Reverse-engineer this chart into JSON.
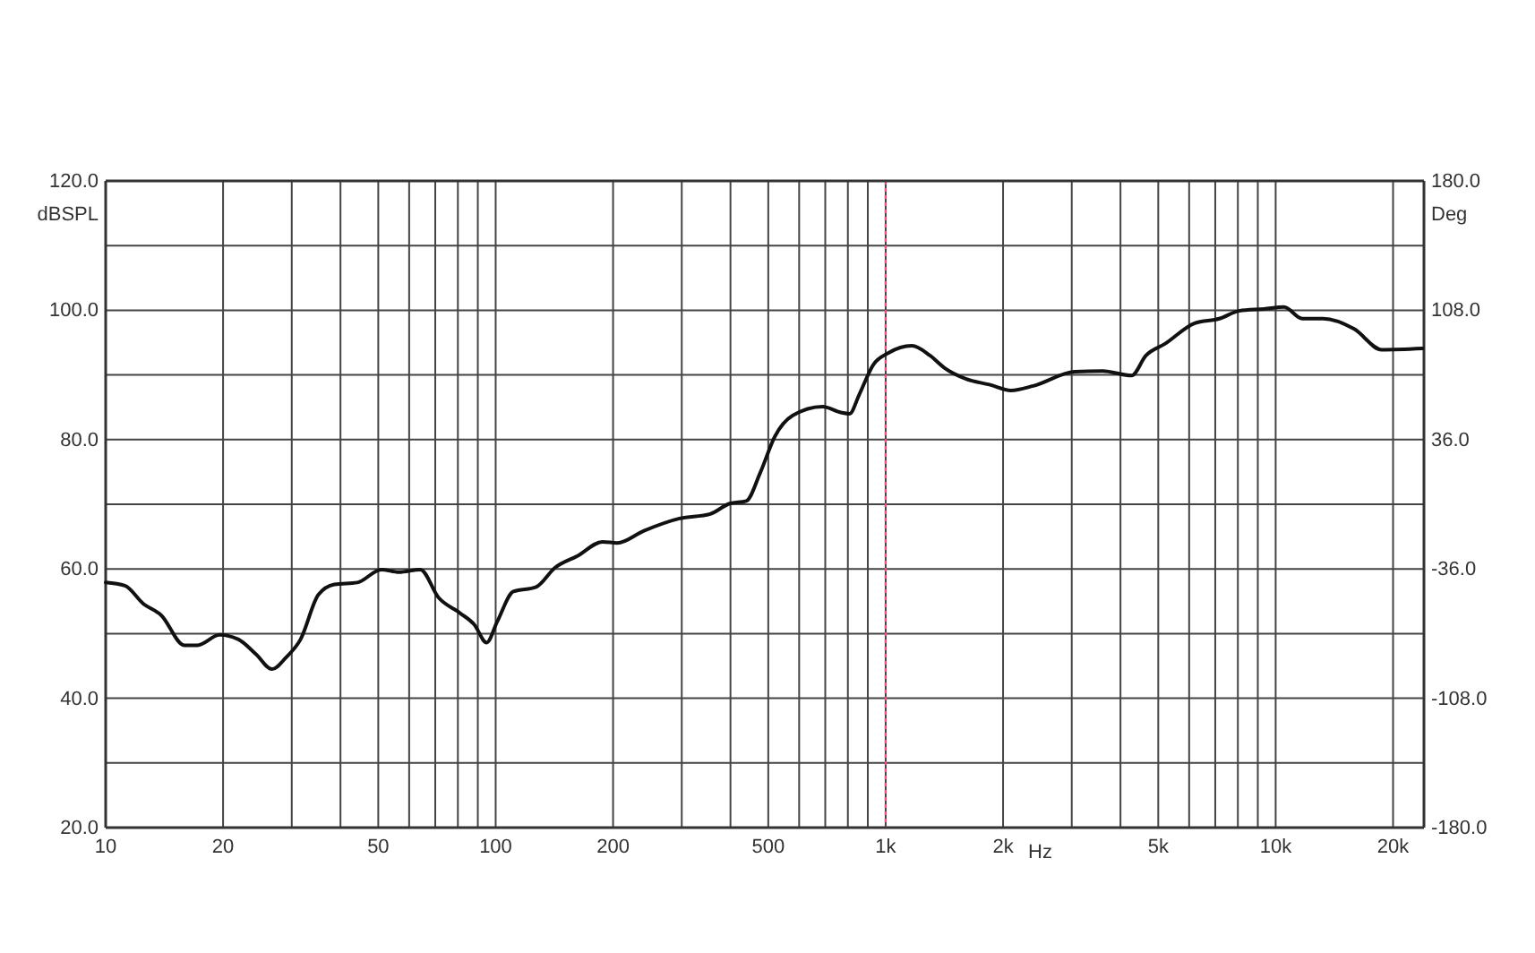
{
  "chart_data": {
    "type": "line",
    "xlabel": "Hz",
    "ylabel": "dBSPL",
    "y2label": "Deg",
    "log": "x",
    "grid": true,
    "line_style": "solid",
    "xlim": [
      10,
      24000
    ],
    "ylim": [
      20,
      120
    ],
    "y2lim": [
      -180,
      180
    ],
    "xticks": [
      10,
      20,
      {
        "value": 30,
        "label": null
      },
      {
        "value": 40,
        "label": null
      },
      50,
      {
        "value": 60,
        "label": null
      },
      {
        "value": 70,
        "label": null
      },
      {
        "value": 80,
        "label": null
      },
      {
        "value": 90,
        "label": null
      },
      100,
      200,
      {
        "value": 300,
        "label": null
      },
      {
        "value": 400,
        "label": null
      },
      500,
      {
        "value": 600,
        "label": null
      },
      {
        "value": 700,
        "label": null
      },
      {
        "value": 800,
        "label": null
      },
      {
        "value": 900,
        "label": null
      },
      {
        "value": 1000,
        "label": "1k"
      },
      {
        "value": 2000,
        "label": "2k"
      },
      {
        "value": 3000,
        "label": null
      },
      {
        "value": 4000,
        "label": null
      },
      {
        "value": 5000,
        "label": "5k"
      },
      {
        "value": 6000,
        "label": null
      },
      {
        "value": 7000,
        "label": null
      },
      {
        "value": 8000,
        "label": null
      },
      {
        "value": 9000,
        "label": null
      },
      {
        "value": 10000,
        "label": "10k"
      },
      {
        "value": 20000,
        "label": "20k"
      }
    ],
    "yticks": [
      {
        "value": 20,
        "label": "20.0"
      },
      {
        "value": 30,
        "label": null
      },
      {
        "value": 40,
        "label": "40.0"
      },
      {
        "value": 50,
        "label": null
      },
      {
        "value": 60,
        "label": "60.0"
      },
      {
        "value": 70,
        "label": null
      },
      {
        "value": 80,
        "label": "80.0"
      },
      {
        "value": 90,
        "label": null
      },
      {
        "value": 100,
        "label": "100.0"
      },
      {
        "value": 110,
        "label": null
      },
      {
        "value": 120,
        "label": "120.0"
      }
    ],
    "y2ticks": [
      {
        "value": -180,
        "label": "-180.0"
      },
      {
        "value": -108,
        "label": "-108.0"
      },
      {
        "value": -36,
        "label": "-36.0"
      },
      {
        "value": 36,
        "label": "36.0"
      },
      {
        "value": 108,
        "label": "108.0"
      },
      {
        "value": 180,
        "label": "180.0"
      }
    ],
    "ref_lines": [
      {
        "axis": "x",
        "value": 1000,
        "label": null,
        "color": "#e8527a",
        "line_style": "dotted"
      }
    ],
    "series": [
      {
        "color": "#111111",
        "x": [
          10,
          11.2,
          12.5,
          13.9,
          15.9,
          17.2,
          19.6,
          21.9,
          24.3,
          26.7,
          29,
          31.6,
          35.1,
          38.6,
          44.2,
          50.9,
          56.5,
          64.1,
          71.3,
          80.9,
          88.1,
          94.8,
          101,
          111,
          127,
          142,
          162,
          188,
          205,
          240,
          296,
          355,
          398,
          439,
          477,
          520,
          577,
          689,
          767,
          808,
          856,
          930,
          1017,
          1167,
          1299,
          1413,
          1603,
          1845,
          2097,
          2390,
          3050,
          3600,
          4270,
          4650,
          5200,
          6200,
          7170,
          8060,
          9330,
          10500,
          11700,
          13230,
          15900,
          18700,
          23800
        ],
        "values": [
          57.9,
          57.4,
          54.6,
          52.8,
          48.2,
          48.2,
          49.8,
          49.1,
          46.8,
          44.5,
          46.3,
          49.1,
          56.0,
          57.6,
          57.9,
          59.9,
          59.5,
          59.9,
          55.6,
          53.2,
          51.4,
          48.6,
          51.9,
          56.5,
          57.2,
          60.2,
          62.0,
          64.2,
          64.0,
          65.9,
          67.8,
          68.5,
          70.1,
          70.5,
          74.9,
          80.5,
          83.7,
          85.1,
          84.2,
          84.0,
          87.0,
          91.6,
          93.4,
          94.5,
          93.0,
          91.1,
          89.4,
          88.5,
          87.6,
          88.3,
          90.5,
          90.6,
          89.9,
          93.0,
          94.8,
          98.0,
          98.7,
          99.9,
          100.2,
          100.5,
          98.7,
          98.7,
          97.1,
          93.9,
          94.1
        ]
      }
    ]
  }
}
